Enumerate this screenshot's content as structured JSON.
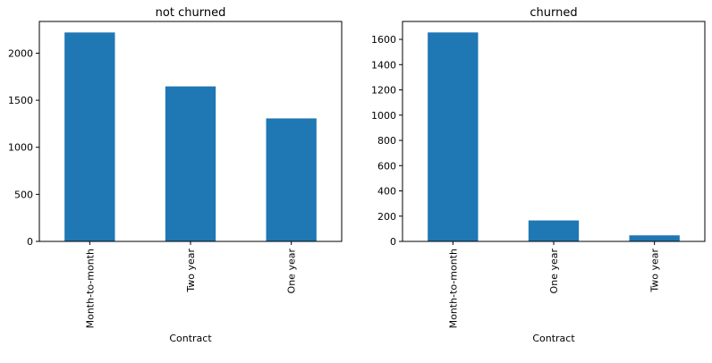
{
  "chart_data": [
    {
      "type": "bar",
      "title": "not churned",
      "xlabel": "Contract",
      "ylabel": "",
      "categories": [
        "Month-to-month",
        "Two year",
        "One year"
      ],
      "values": [
        2220,
        1647,
        1307
      ],
      "ylim": [
        0,
        2337
      ],
      "yticks": [
        0,
        500,
        1000,
        1500,
        2000
      ],
      "color": "#1f77b4",
      "grid": false
    },
    {
      "type": "bar",
      "title": "churned",
      "xlabel": "Contract",
      "ylabel": "",
      "categories": [
        "Month-to-month",
        "One year",
        "Two year"
      ],
      "values": [
        1655,
        166,
        48
      ],
      "ylim": [
        0,
        1742
      ],
      "yticks": [
        0,
        200,
        400,
        600,
        800,
        1000,
        1200,
        1400,
        1600
      ],
      "color": "#1f77b4",
      "grid": false
    }
  ]
}
